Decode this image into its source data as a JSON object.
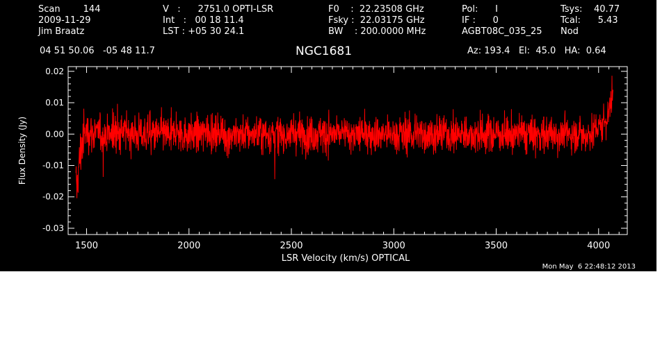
{
  "header": {
    "col1": [
      "Scan        144",
      "2009-11-29",
      "Jim Braatz"
    ],
    "col2": [
      "V   :      2751.0 OPTI-LSR",
      "Int   :   00 18 11.4",
      "LST : +05 30 24.1"
    ],
    "col3": [
      "F0    :  22.23508 GHz",
      "Fsky :  22.03175 GHz",
      "BW    : 200.0000 MHz"
    ],
    "col4": [
      "Pol:      I",
      "IF :      0",
      "AGBT08C_035_25"
    ],
    "col5": [
      "Tsys:    40.77",
      "Tcal:      5.43",
      "Nod"
    ],
    "coords": "04 51 50.06   -05 48 11.7",
    "object": "NGC1681",
    "azel": "Az: 193.4   El:  45.0   HA:  0.64"
  },
  "timestamp": "Mon May  6 22:48:12 2013",
  "colors": {
    "background": "#000000",
    "axes": "#ffffff",
    "trace": "#ff0000"
  },
  "chart_data": {
    "type": "line",
    "title": "NGC1681",
    "xlabel": "LSR Velocity (km/s) OPTICAL",
    "ylabel": "Flux Density (Jy)",
    "xlim": [
      1410,
      4140
    ],
    "ylim": [
      -0.032,
      0.0215
    ],
    "xticks": [
      1500,
      2000,
      2500,
      3000,
      3500,
      4000
    ],
    "xtick_labels": [
      "1500",
      "2000",
      "2500",
      "3000",
      "3500",
      "4000"
    ],
    "yticks": [
      0.02,
      0.01,
      0.0,
      -0.01,
      -0.02,
      -0.03
    ],
    "ytick_labels": [
      "0.02",
      "0.01",
      "0.00",
      "-0.01",
      "-0.02",
      "-0.03"
    ],
    "grid": false,
    "series": [
      {
        "color": "#ff0000",
        "x": [
          1450,
          1460,
          1470,
          1480,
          1500,
          1550,
          1600,
          1650,
          1700,
          1750,
          1800,
          1850,
          1900,
          1950,
          2000,
          2050,
          2100,
          2150,
          2200,
          2250,
          2300,
          2350,
          2400,
          2450,
          2500,
          2550,
          2600,
          2650,
          2700,
          2750,
          2800,
          2850,
          2900,
          2950,
          3000,
          3050,
          3100,
          3150,
          3200,
          3250,
          3300,
          3350,
          3400,
          3450,
          3500,
          3550,
          3600,
          3650,
          3700,
          3750,
          3800,
          3850,
          3900,
          3950,
          4000,
          4030,
          4050,
          4060,
          4070
        ],
        "y": [
          -0.018,
          -0.012,
          -0.006,
          -0.002,
          0.001,
          0.0,
          0.0,
          0.0,
          0.001,
          0.0,
          0.0,
          0.0,
          0.0,
          0.0,
          0.0,
          0.0,
          0.001,
          0.0,
          0.0,
          0.0,
          0.0,
          0.0,
          0.0,
          0.0,
          0.0,
          0.0,
          0.0,
          0.0,
          0.0,
          0.0,
          0.0,
          0.0,
          0.0,
          0.0,
          0.0,
          0.0,
          0.0,
          0.0,
          0.0,
          0.0,
          0.0,
          0.0,
          0.0,
          0.0,
          0.0,
          0.0,
          0.0,
          0.0,
          0.0,
          0.0,
          0.0,
          0.0,
          0.0,
          0.0,
          0.002,
          0.004,
          0.007,
          0.01,
          0.012
        ]
      }
    ]
  }
}
